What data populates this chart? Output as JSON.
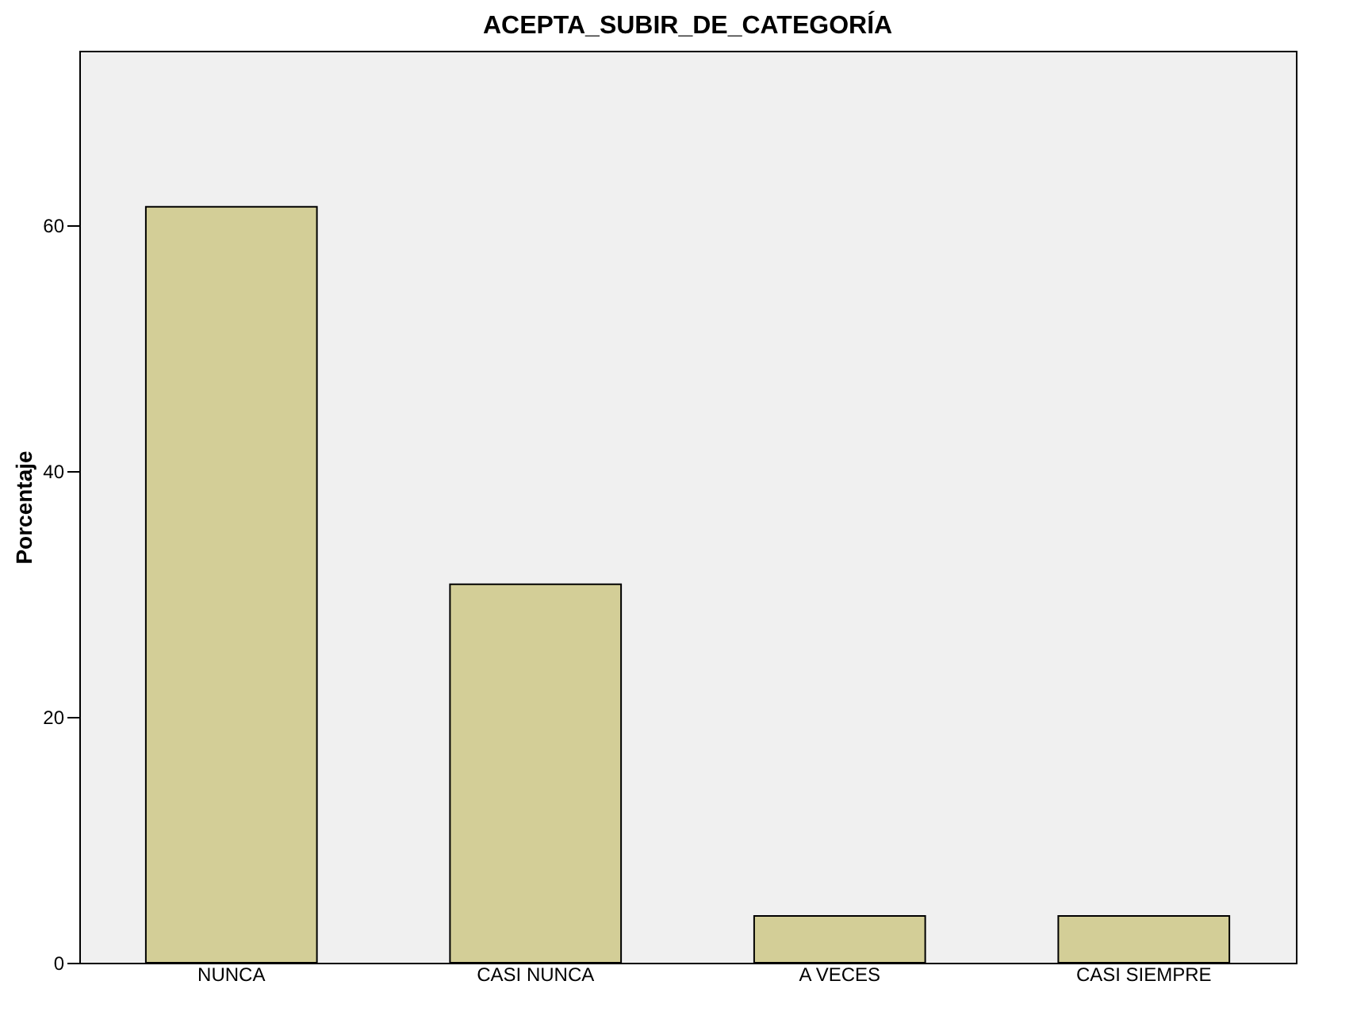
{
  "chart_data": {
    "type": "bar",
    "title": "ACEPTA_SUBIR_DE_CATEGORÍA",
    "ylabel": "Porcentaje",
    "categories": [
      "NUNCA",
      "CASI NUNCA",
      "A VECES",
      "CASI SIEMPRE"
    ],
    "values": [
      61.5,
      30.8,
      3.8,
      3.8
    ],
    "color": "#d3ce97",
    "ylim": [
      0,
      74.2
    ],
    "yticks": [
      0,
      20,
      40,
      60
    ],
    "grid": false
  }
}
